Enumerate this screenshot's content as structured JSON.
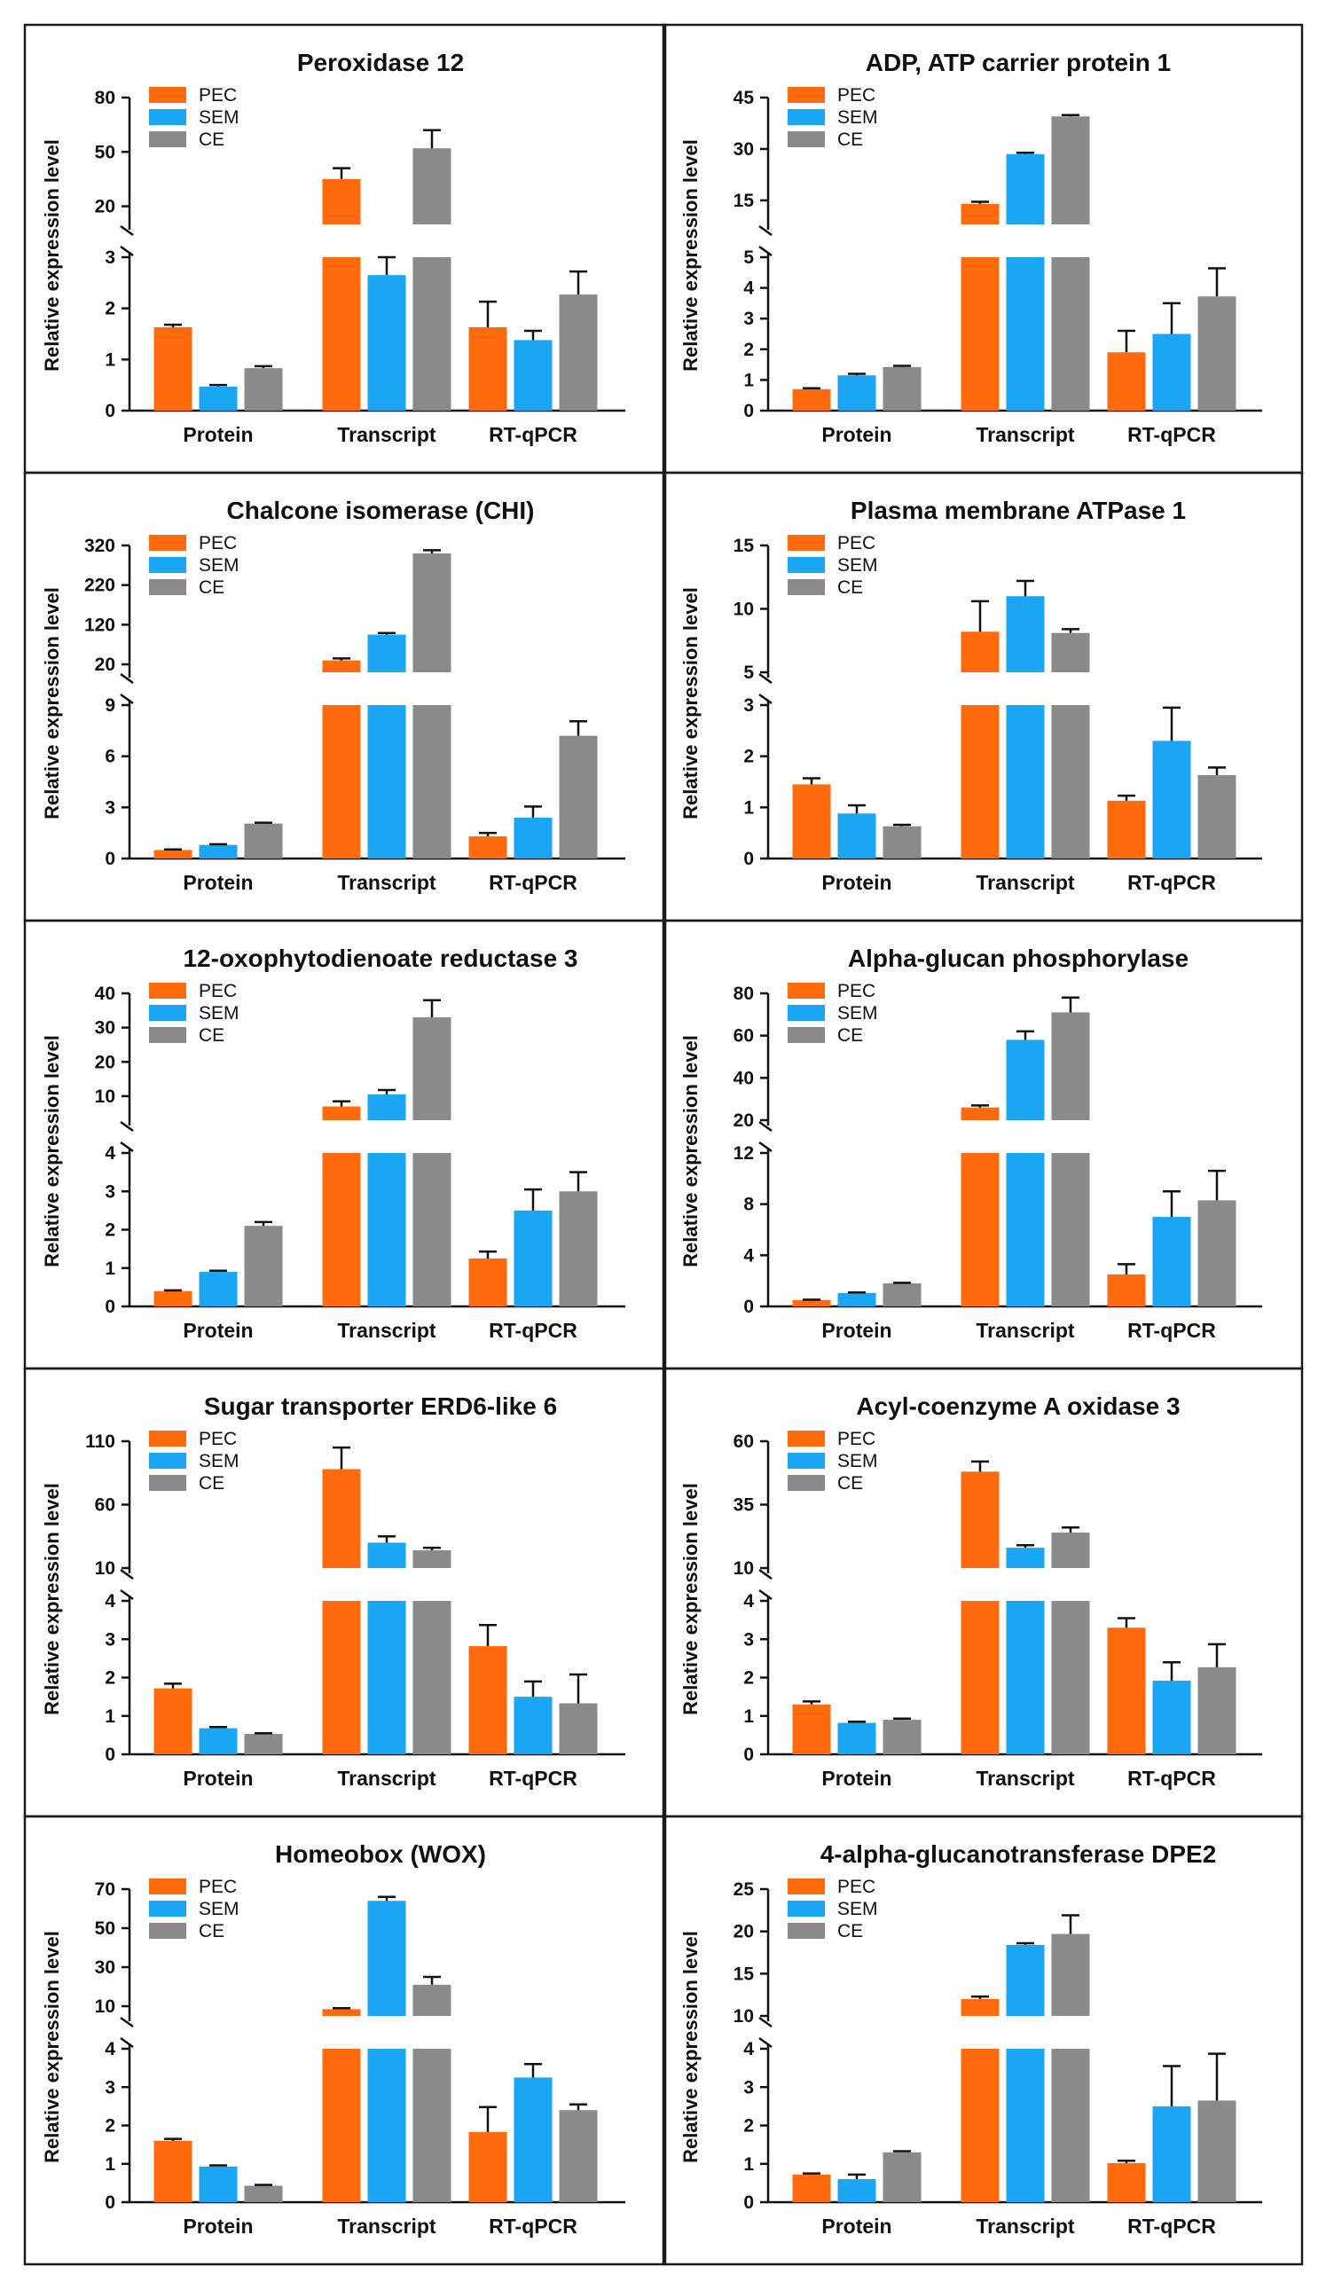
{
  "colors": {
    "PEC": "#ff6a0d",
    "SEM": "#1aa6f2",
    "CE": "#8a8a8a"
  },
  "chart_data": [
    {
      "type": "bar",
      "title": "Peroxidase 12",
      "ylabel": "Relative expression level",
      "categories": [
        "Protein",
        "Transcript",
        "RT-qPCR"
      ],
      "legend": [
        "PEC",
        "SEM",
        "CE"
      ],
      "axis_break": true,
      "lower_ylim": [
        0,
        3
      ],
      "lower_ticks": [
        "0",
        "1",
        "2",
        "3"
      ],
      "upper_ylim": [
        10,
        80
      ],
      "upper_ticks": [
        "20",
        "50",
        "80"
      ],
      "series": [
        {
          "name": "PEC",
          "values": [
            1.63,
            35,
            1.63
          ],
          "errors": [
            0.05,
            6,
            0.5
          ]
        },
        {
          "name": "SEM",
          "values": [
            0.47,
            2.65,
            1.38
          ],
          "errors": [
            0.03,
            0.35,
            0.18
          ]
        },
        {
          "name": "CE",
          "values": [
            0.83,
            52,
            2.27
          ],
          "errors": [
            0.04,
            10,
            0.45
          ]
        }
      ]
    },
    {
      "type": "bar",
      "title": "ADP, ATP carrier protein 1",
      "ylabel": "Relative expression level",
      "categories": [
        "Protein",
        "Transcript",
        "RT-qPCR"
      ],
      "legend": [
        "PEC",
        "SEM",
        "CE"
      ],
      "axis_break": true,
      "lower_ylim": [
        0,
        5
      ],
      "lower_ticks": [
        "0",
        "1",
        "2",
        "3",
        "4",
        "5"
      ],
      "upper_ylim": [
        8,
        45
      ],
      "upper_ticks": [
        "15",
        "30",
        "45"
      ],
      "series": [
        {
          "name": "PEC",
          "values": [
            0.7,
            14,
            1.9
          ],
          "errors": [
            0.03,
            0.6,
            0.7
          ]
        },
        {
          "name": "SEM",
          "values": [
            1.15,
            28.5,
            2.5
          ],
          "errors": [
            0.05,
            0.4,
            1.0
          ]
        },
        {
          "name": "CE",
          "values": [
            1.42,
            39.5,
            3.72
          ],
          "errors": [
            0.04,
            0.4,
            0.92
          ]
        }
      ]
    },
    {
      "type": "bar",
      "title": "Chalcone isomerase (CHI)",
      "ylabel": "Relative expression level",
      "categories": [
        "Protein",
        "Transcript",
        "RT-qPCR"
      ],
      "legend": [
        "PEC",
        "SEM",
        "CE"
      ],
      "axis_break": true,
      "lower_ylim": [
        0,
        9
      ],
      "lower_ticks": [
        "0",
        "3",
        "6",
        "9"
      ],
      "upper_ylim": [
        0,
        320
      ],
      "upper_ticks": [
        "20",
        "120",
        "220",
        "320"
      ],
      "series": [
        {
          "name": "PEC",
          "values": [
            0.5,
            30,
            1.3
          ],
          "errors": [
            0.03,
            5,
            0.2
          ]
        },
        {
          "name": "SEM",
          "values": [
            0.8,
            95,
            2.4
          ],
          "errors": [
            0.04,
            4,
            0.65
          ]
        },
        {
          "name": "CE",
          "values": [
            2.05,
            300,
            7.2
          ],
          "errors": [
            0.05,
            8,
            0.85
          ]
        }
      ]
    },
    {
      "type": "bar",
      "title": "Plasma membrane ATPase 1",
      "ylabel": "Relative expression level",
      "categories": [
        "Protein",
        "Transcript",
        "RT-qPCR"
      ],
      "legend": [
        "PEC",
        "SEM",
        "CE"
      ],
      "axis_break": true,
      "lower_ylim": [
        0,
        3
      ],
      "lower_ticks": [
        "0",
        "1",
        "2",
        "3"
      ],
      "upper_ylim": [
        5,
        15
      ],
      "upper_ticks": [
        "5",
        "10",
        "15"
      ],
      "series": [
        {
          "name": "PEC",
          "values": [
            1.45,
            8.2,
            1.13
          ],
          "errors": [
            0.12,
            2.4,
            0.1
          ]
        },
        {
          "name": "SEM",
          "values": [
            0.88,
            11,
            2.3
          ],
          "errors": [
            0.16,
            1.2,
            0.65
          ]
        },
        {
          "name": "CE",
          "values": [
            0.63,
            8.1,
            1.63
          ],
          "errors": [
            0.03,
            0.3,
            0.15
          ]
        }
      ]
    },
    {
      "type": "bar",
      "title": "12-oxophytodienoate reductase 3",
      "ylabel": "Relative expression level",
      "categories": [
        "Protein",
        "Transcript",
        "RT-qPCR"
      ],
      "legend": [
        "PEC",
        "SEM",
        "CE"
      ],
      "axis_break": true,
      "lower_ylim": [
        0,
        4
      ],
      "lower_ticks": [
        "0",
        "1",
        "2",
        "3",
        "4"
      ],
      "upper_ylim": [
        3,
        40
      ],
      "upper_ticks": [
        "10",
        "20",
        "30",
        "40"
      ],
      "series": [
        {
          "name": "PEC",
          "values": [
            0.4,
            7,
            1.25
          ],
          "errors": [
            0.02,
            1.5,
            0.18
          ]
        },
        {
          "name": "SEM",
          "values": [
            0.9,
            10.5,
            2.5
          ],
          "errors": [
            0.03,
            1.3,
            0.55
          ]
        },
        {
          "name": "CE",
          "values": [
            2.1,
            33,
            3.0
          ],
          "errors": [
            0.1,
            5,
            0.5
          ]
        }
      ]
    },
    {
      "type": "bar",
      "title": "Alpha-glucan phosphorylase",
      "ylabel": "Relative expression level",
      "categories": [
        "Protein",
        "Transcript",
        "RT-qPCR"
      ],
      "legend": [
        "PEC",
        "SEM",
        "CE"
      ],
      "axis_break": true,
      "lower_ylim": [
        0,
        12
      ],
      "lower_ticks": [
        "0",
        "4",
        "8",
        "12"
      ],
      "upper_ylim": [
        20,
        80
      ],
      "upper_ticks": [
        "20",
        "40",
        "60",
        "80"
      ],
      "series": [
        {
          "name": "PEC",
          "values": [
            0.5,
            26,
            2.5
          ],
          "errors": [
            0.03,
            1,
            0.8
          ]
        },
        {
          "name": "SEM",
          "values": [
            1.05,
            58,
            7.0
          ],
          "errors": [
            0.04,
            4,
            2.0
          ]
        },
        {
          "name": "CE",
          "values": [
            1.8,
            71,
            8.3
          ],
          "errors": [
            0.05,
            7,
            2.3
          ]
        }
      ]
    },
    {
      "type": "bar",
      "title": "Sugar transporter ERD6-like 6",
      "ylabel": "Relative expression level",
      "categories": [
        "Protein",
        "Transcript",
        "RT-qPCR"
      ],
      "legend": [
        "PEC",
        "SEM",
        "CE"
      ],
      "axis_break": true,
      "lower_ylim": [
        0,
        4
      ],
      "lower_ticks": [
        "0",
        "1",
        "2",
        "3",
        "4"
      ],
      "upper_ylim": [
        10,
        110
      ],
      "upper_ticks": [
        "10",
        "60",
        "110"
      ],
      "series": [
        {
          "name": "PEC",
          "values": [
            1.72,
            88,
            2.82
          ],
          "errors": [
            0.12,
            17,
            0.55
          ]
        },
        {
          "name": "SEM",
          "values": [
            0.68,
            30,
            1.5
          ],
          "errors": [
            0.03,
            5,
            0.4
          ]
        },
        {
          "name": "CE",
          "values": [
            0.53,
            24,
            1.33
          ],
          "errors": [
            0.02,
            2,
            0.75
          ]
        }
      ]
    },
    {
      "type": "bar",
      "title": "Acyl-coenzyme A oxidase 3",
      "ylabel": "Relative expression level",
      "categories": [
        "Protein",
        "Transcript",
        "RT-qPCR"
      ],
      "legend": [
        "PEC",
        "SEM",
        "CE"
      ],
      "axis_break": true,
      "lower_ylim": [
        0,
        4
      ],
      "lower_ticks": [
        "0",
        "1",
        "2",
        "3",
        "4"
      ],
      "upper_ylim": [
        10,
        60
      ],
      "upper_ticks": [
        "10",
        "35",
        "60"
      ],
      "series": [
        {
          "name": "PEC",
          "values": [
            1.3,
            48,
            3.3
          ],
          "errors": [
            0.08,
            4,
            0.25
          ]
        },
        {
          "name": "SEM",
          "values": [
            0.82,
            18,
            1.92
          ],
          "errors": [
            0.03,
            1,
            0.48
          ]
        },
        {
          "name": "CE",
          "values": [
            0.9,
            24,
            2.27
          ],
          "errors": [
            0.03,
            2,
            0.6
          ]
        }
      ]
    },
    {
      "type": "bar",
      "title": "Homeobox (WOX)",
      "ylabel": "Relative expression level",
      "categories": [
        "Protein",
        "Transcript",
        "RT-qPCR"
      ],
      "legend": [
        "PEC",
        "SEM",
        "CE"
      ],
      "axis_break": true,
      "lower_ylim": [
        0,
        4
      ],
      "lower_ticks": [
        "0",
        "1",
        "2",
        "3",
        "4"
      ],
      "upper_ylim": [
        5,
        70
      ],
      "upper_ticks": [
        "10",
        "30",
        "50",
        "70"
      ],
      "series": [
        {
          "name": "PEC",
          "values": [
            1.6,
            8.5,
            1.83
          ],
          "errors": [
            0.05,
            0.5,
            0.65
          ]
        },
        {
          "name": "SEM",
          "values": [
            0.93,
            64,
            3.25
          ],
          "errors": [
            0.03,
            2,
            0.35
          ]
        },
        {
          "name": "CE",
          "values": [
            0.43,
            21,
            2.4
          ],
          "errors": [
            0.02,
            4,
            0.15
          ]
        }
      ]
    },
    {
      "type": "bar",
      "title": "4-alpha-glucanotransferase DPE2",
      "ylabel": "Relative expression level",
      "categories": [
        "Protein",
        "Transcript",
        "RT-qPCR"
      ],
      "legend": [
        "PEC",
        "SEM",
        "CE"
      ],
      "axis_break": true,
      "lower_ylim": [
        0,
        4
      ],
      "lower_ticks": [
        "0",
        "1",
        "2",
        "3",
        "4"
      ],
      "upper_ylim": [
        10,
        25
      ],
      "upper_ticks": [
        "10",
        "15",
        "20",
        "25"
      ],
      "series": [
        {
          "name": "PEC",
          "values": [
            0.72,
            12,
            1.02
          ],
          "errors": [
            0.03,
            0.3,
            0.06
          ]
        },
        {
          "name": "SEM",
          "values": [
            0.6,
            18.4,
            2.5
          ],
          "errors": [
            0.12,
            0.2,
            1.05
          ]
        },
        {
          "name": "CE",
          "values": [
            1.3,
            19.7,
            2.65
          ],
          "errors": [
            0.03,
            2.2,
            1.22
          ]
        }
      ]
    }
  ]
}
